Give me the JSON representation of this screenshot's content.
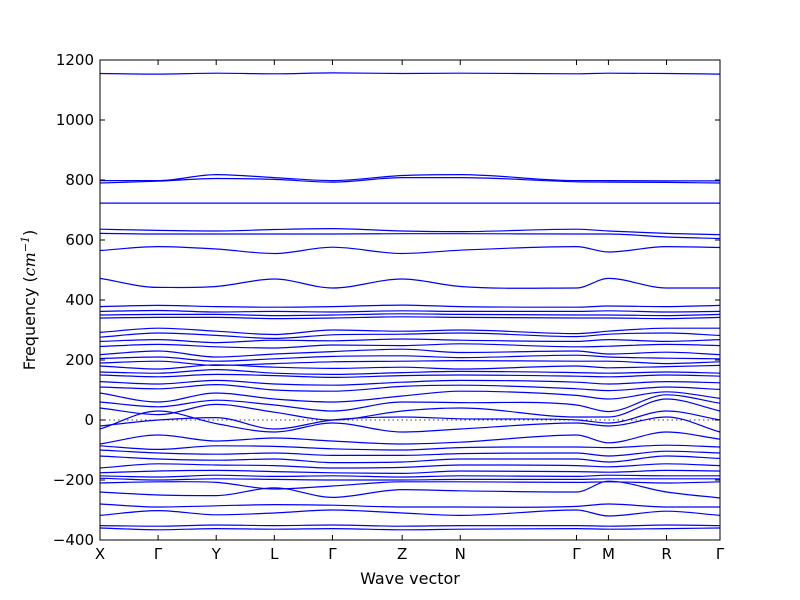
{
  "chart_data": {
    "type": "line",
    "title": "",
    "xlabel": "Wave vector",
    "ylabel": "Frequency",
    "ylabel_unit_base": "cm",
    "ylabel_unit_exp": "−1",
    "ylim": [
      -400,
      1200
    ],
    "yticks": [
      -400,
      -200,
      0,
      200,
      400,
      600,
      800,
      1000,
      1200
    ],
    "ytick_labels": [
      "−400",
      "−200",
      "0",
      "200",
      "400",
      "600",
      "800",
      "1000",
      "1200"
    ],
    "xlim": [
      0,
      10.67
    ],
    "high_symmetry_points": [
      {
        "label": "X",
        "x": 0.0
      },
      {
        "label": "Γ",
        "x": 1.0
      },
      {
        "label": "Y",
        "x": 2.0
      },
      {
        "label": "L",
        "x": 3.0
      },
      {
        "label": "Γ",
        "x": 4.0
      },
      {
        "label": "Z",
        "x": 5.2
      },
      {
        "label": "N",
        "x": 6.2
      },
      {
        "label": "Γ",
        "x": 8.2
      },
      {
        "label": "M",
        "x": 8.75
      },
      {
        "label": "R",
        "x": 9.75
      },
      {
        "label": "Γ",
        "x": 10.67
      }
    ],
    "zero_line": true,
    "grid": false,
    "legend": "none",
    "line_color": "#0000ff",
    "series": [
      {
        "x": [
          0,
          1,
          2,
          3,
          4,
          5.2,
          6.2,
          8.2,
          8.75,
          9.75,
          10.67
        ],
        "values": [
          1155,
          1153,
          1156,
          1154,
          1157,
          1155,
          1156,
          1154,
          1156,
          1155,
          1153
        ]
      },
      {
        "x": [
          0,
          1,
          2,
          3,
          4,
          5.2,
          6.2,
          8.2,
          8.75,
          9.75,
          10.67
        ],
        "values": [
          798,
          798,
          818,
          808,
          798,
          815,
          818,
          798,
          798,
          797,
          797
        ]
      },
      {
        "x": [
          0,
          1,
          2,
          3,
          4,
          5.2,
          6.2,
          8.2,
          8.75,
          9.75,
          10.67
        ],
        "values": [
          790,
          796,
          805,
          802,
          793,
          808,
          808,
          794,
          793,
          792,
          790
        ]
      },
      {
        "x": [
          0,
          1,
          2,
          3,
          4,
          5.2,
          6.2,
          8.2,
          8.75,
          9.75,
          10.67
        ],
        "values": [
          723,
          723,
          723,
          723,
          723,
          723,
          723,
          723,
          723,
          723,
          723
        ]
      },
      {
        "x": [
          0,
          1,
          2,
          3,
          4,
          5.2,
          6.2,
          8.2,
          8.75,
          9.75,
          10.67
        ],
        "values": [
          636,
          632,
          630,
          635,
          638,
          630,
          628,
          636,
          630,
          622,
          618
        ]
      },
      {
        "x": [
          0,
          1,
          2,
          3,
          4,
          5.2,
          6.2,
          8.2,
          8.75,
          9.75,
          10.67
        ],
        "values": [
          622,
          620,
          620,
          620,
          620,
          621,
          621,
          620,
          620,
          610,
          605
        ]
      },
      {
        "x": [
          0,
          1,
          2,
          3,
          4,
          5.2,
          6.2,
          8.2,
          8.75,
          9.75,
          10.67
        ],
        "values": [
          565,
          578,
          570,
          555,
          576,
          555,
          566,
          578,
          560,
          578,
          575
        ]
      },
      {
        "x": [
          0,
          1,
          2,
          3,
          4,
          5.2,
          6.2,
          8.2,
          8.75,
          9.75,
          10.67
        ],
        "values": [
          472,
          442,
          445,
          470,
          440,
          470,
          445,
          440,
          472,
          440,
          440
        ]
      },
      {
        "x": [
          0,
          1,
          2,
          3,
          4,
          5.2,
          6.2,
          8.2,
          8.75,
          9.75,
          10.67
        ],
        "values": [
          378,
          382,
          378,
          376,
          378,
          383,
          378,
          376,
          380,
          378,
          382
        ]
      },
      {
        "x": [
          0,
          1,
          2,
          3,
          4,
          5.2,
          6.2,
          8.2,
          8.75,
          9.75,
          10.67
        ],
        "values": [
          362,
          365,
          360,
          362,
          360,
          364,
          362,
          362,
          364,
          360,
          362
        ]
      },
      {
        "x": [
          0,
          1,
          2,
          3,
          4,
          5.2,
          6.2,
          8.2,
          8.75,
          9.75,
          10.67
        ],
        "values": [
          350,
          352,
          352,
          348,
          350,
          354,
          352,
          350,
          350,
          348,
          352
        ]
      },
      {
        "x": [
          0,
          1,
          2,
          3,
          4,
          5.2,
          6.2,
          8.2,
          8.75,
          9.75,
          10.67
        ],
        "values": [
          340,
          342,
          342,
          338,
          340,
          344,
          342,
          340,
          340,
          338,
          342
        ]
      },
      {
        "x": [
          0,
          1,
          2,
          3,
          4,
          5.2,
          6.2,
          8.2,
          8.75,
          9.75,
          10.67
        ],
        "values": [
          292,
          306,
          296,
          285,
          300,
          296,
          300,
          288,
          296,
          306,
          306
        ]
      },
      {
        "x": [
          0,
          1,
          2,
          3,
          4,
          5.2,
          6.2,
          8.2,
          8.75,
          9.75,
          10.67
        ],
        "values": [
          276,
          290,
          282,
          272,
          284,
          286,
          290,
          278,
          286,
          290,
          282
        ]
      },
      {
        "x": [
          0,
          1,
          2,
          3,
          4,
          5.2,
          6.2,
          8.2,
          8.75,
          9.75,
          10.67
        ],
        "values": [
          262,
          268,
          258,
          266,
          264,
          270,
          266,
          262,
          268,
          262,
          268
        ]
      },
      {
        "x": [
          0,
          1,
          2,
          3,
          4,
          5.2,
          6.2,
          8.2,
          8.75,
          9.75,
          10.67
        ],
        "values": [
          245,
          252,
          244,
          240,
          250,
          248,
          254,
          244,
          246,
          252,
          248
        ]
      },
      {
        "x": [
          0,
          1,
          2,
          3,
          4,
          5.2,
          6.2,
          8.2,
          8.75,
          9.75,
          10.67
        ],
        "values": [
          218,
          230,
          210,
          220,
          228,
          236,
          225,
          230,
          220,
          226,
          218
        ]
      },
      {
        "x": [
          0,
          1,
          2,
          3,
          4,
          5.2,
          6.2,
          8.2,
          8.75,
          9.75,
          10.67
        ],
        "values": [
          205,
          210,
          196,
          204,
          212,
          214,
          208,
          216,
          210,
          206,
          204
        ]
      },
      {
        "x": [
          0,
          1,
          2,
          3,
          4,
          5.2,
          6.2,
          8.2,
          8.75,
          9.75,
          10.67
        ],
        "values": [
          190,
          196,
          182,
          188,
          194,
          196,
          198,
          196,
          196,
          188,
          194
        ]
      },
      {
        "x": [
          0,
          1,
          2,
          3,
          4,
          5.2,
          6.2,
          8.2,
          8.75,
          9.75,
          10.67
        ],
        "values": [
          180,
          170,
          184,
          176,
          172,
          176,
          170,
          180,
          174,
          178,
          182
        ]
      },
      {
        "x": [
          0,
          1,
          2,
          3,
          4,
          5.2,
          6.2,
          8.2,
          8.75,
          9.75,
          10.67
        ],
        "values": [
          160,
          156,
          168,
          156,
          152,
          158,
          162,
          158,
          156,
          160,
          156
        ]
      },
      {
        "x": [
          0,
          1,
          2,
          3,
          4,
          5.2,
          6.2,
          8.2,
          8.75,
          9.75,
          10.67
        ],
        "values": [
          150,
          144,
          152,
          148,
          142,
          148,
          150,
          146,
          144,
          150,
          146
        ]
      },
      {
        "x": [
          0,
          1,
          2,
          3,
          4,
          5.2,
          6.2,
          8.2,
          8.75,
          9.75,
          10.67
        ],
        "values": [
          128,
          120,
          132,
          120,
          116,
          126,
          132,
          126,
          120,
          128,
          124
        ]
      },
      {
        "x": [
          0,
          1,
          2,
          3,
          4,
          5.2,
          6.2,
          8.2,
          8.75,
          9.75,
          10.67
        ],
        "values": [
          110,
          104,
          118,
          100,
          96,
          112,
          116,
          104,
          98,
          110,
          102
        ]
      },
      {
        "x": [
          0,
          1,
          2,
          3,
          4,
          5.2,
          6.2,
          8.2,
          8.75,
          9.75,
          10.67
        ],
        "values": [
          90,
          60,
          90,
          70,
          60,
          80,
          96,
          82,
          70,
          94,
          72
        ]
      },
      {
        "x": [
          0,
          1,
          2,
          3,
          4,
          5.2,
          6.2,
          8.2,
          8.75,
          9.75,
          10.67
        ],
        "values": [
          60,
          44,
          66,
          50,
          30,
          60,
          58,
          50,
          28,
          84,
          56
        ]
      },
      {
        "x": [
          0,
          1,
          2,
          3,
          4,
          5.2,
          6.2,
          8.2,
          8.75,
          9.75,
          10.67
        ],
        "values": [
          40,
          18,
          52,
          26,
          0,
          30,
          40,
          10,
          10,
          70,
          30
        ]
      },
      {
        "x": [
          0,
          1,
          2,
          3,
          4,
          5.2,
          6.2,
          8.2,
          8.75,
          9.75,
          10.67
        ],
        "values": [
          -20,
          0,
          8,
          -30,
          0,
          10,
          4,
          0,
          -10,
          30,
          0
        ]
      },
      {
        "x": [
          0,
          1,
          2,
          3,
          4,
          5.2,
          6.2,
          8.2,
          8.75,
          9.75,
          10.67
        ],
        "values": [
          -30,
          30,
          -12,
          -40,
          -10,
          -40,
          -30,
          -10,
          -20,
          10,
          -40
        ]
      },
      {
        "x": [
          0,
          1,
          2,
          3,
          4,
          5.2,
          6.2,
          8.2,
          8.75,
          9.75,
          10.67
        ],
        "values": [
          -80,
          -50,
          -70,
          -60,
          -70,
          -80,
          -74,
          -50,
          -76,
          -40,
          -64
        ]
      },
      {
        "x": [
          0,
          1,
          2,
          3,
          4,
          5.2,
          6.2,
          8.2,
          8.75,
          9.75,
          10.67
        ],
        "values": [
          -86,
          -98,
          -86,
          -88,
          -96,
          -100,
          -92,
          -90,
          -92,
          -84,
          -90
        ]
      },
      {
        "x": [
          0,
          1,
          2,
          3,
          4,
          5.2,
          6.2,
          8.2,
          8.75,
          9.75,
          10.67
        ],
        "values": [
          -100,
          -110,
          -114,
          -110,
          -118,
          -118,
          -112,
          -110,
          -120,
          -104,
          -110
        ]
      },
      {
        "x": [
          0,
          1,
          2,
          3,
          4,
          5.2,
          6.2,
          8.2,
          8.75,
          9.75,
          10.67
        ],
        "values": [
          -120,
          -130,
          -134,
          -130,
          -142,
          -140,
          -130,
          -130,
          -140,
          -120,
          -128
        ]
      },
      {
        "x": [
          0,
          1,
          2,
          3,
          4,
          5.2,
          6.2,
          8.2,
          8.75,
          9.75,
          10.67
        ],
        "values": [
          -160,
          -146,
          -150,
          -152,
          -160,
          -158,
          -150,
          -152,
          -156,
          -146,
          -152
        ]
      },
      {
        "x": [
          0,
          1,
          2,
          3,
          4,
          5.2,
          6.2,
          8.2,
          8.75,
          9.75,
          10.67
        ],
        "values": [
          -176,
          -170,
          -168,
          -172,
          -176,
          -178,
          -170,
          -172,
          -174,
          -168,
          -170
        ]
      },
      {
        "x": [
          0,
          1,
          2,
          3,
          4,
          5.2,
          6.2,
          8.2,
          8.75,
          9.75,
          10.67
        ],
        "values": [
          -186,
          -190,
          -184,
          -188,
          -186,
          -190,
          -186,
          -188,
          -184,
          -186,
          -186
        ]
      },
      {
        "x": [
          0,
          1,
          2,
          3,
          4,
          5.2,
          6.2,
          8.2,
          8.75,
          9.75,
          10.67
        ],
        "values": [
          -194,
          -200,
          -196,
          -198,
          -200,
          -200,
          -198,
          -198,
          -196,
          -196,
          -196
        ]
      },
      {
        "x": [
          0,
          1,
          2,
          3,
          4,
          5.2,
          6.2,
          8.2,
          8.75,
          9.75,
          10.67
        ],
        "values": [
          -210,
          -206,
          -208,
          -230,
          -220,
          -206,
          -206,
          -208,
          -206,
          -210,
          -206
        ]
      },
      {
        "x": [
          0,
          1,
          2,
          3,
          4,
          5.2,
          6.2,
          8.2,
          8.75,
          9.75,
          10.67
        ],
        "values": [
          -240,
          -250,
          -252,
          -226,
          -258,
          -232,
          -236,
          -240,
          -204,
          -240,
          -260
        ]
      },
      {
        "x": [
          0,
          1,
          2,
          3,
          4,
          5.2,
          6.2,
          8.2,
          8.75,
          9.75,
          10.67
        ],
        "values": [
          -280,
          -290,
          -286,
          -282,
          -284,
          -290,
          -290,
          -288,
          -280,
          -290,
          -290
        ]
      },
      {
        "x": [
          0,
          1,
          2,
          3,
          4,
          5.2,
          6.2,
          8.2,
          8.75,
          9.75,
          10.67
        ],
        "values": [
          -318,
          -302,
          -316,
          -310,
          -300,
          -310,
          -318,
          -300,
          -320,
          -304,
          -318
        ]
      },
      {
        "x": [
          0,
          1,
          2,
          3,
          4,
          5.2,
          6.2,
          8.2,
          8.75,
          9.75,
          10.67
        ],
        "values": [
          -352,
          -354,
          -350,
          -352,
          -350,
          -354,
          -352,
          -352,
          -354,
          -350,
          -352
        ]
      },
      {
        "x": [
          0,
          1,
          2,
          3,
          4,
          5.2,
          6.2,
          8.2,
          8.75,
          9.75,
          10.67
        ],
        "values": [
          -360,
          -366,
          -362,
          -364,
          -362,
          -366,
          -364,
          -362,
          -364,
          -362,
          -360
        ]
      }
    ]
  }
}
